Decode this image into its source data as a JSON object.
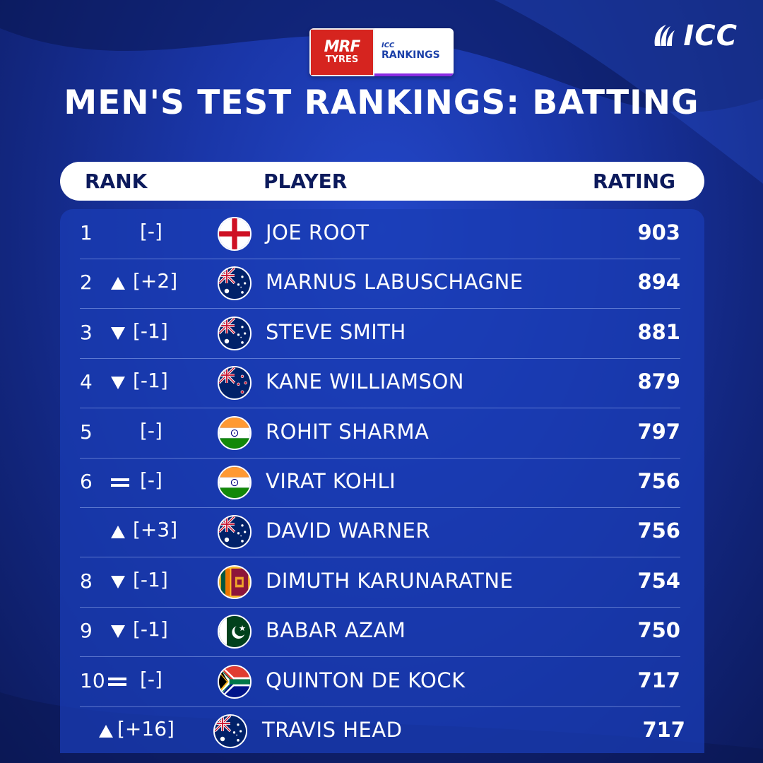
{
  "sponsor": {
    "mrf_line1": "MRF",
    "mrf_line2": "TYRES",
    "icc_small": "ICC",
    "icc_rankings": "RANKINGS"
  },
  "brand": {
    "logo_text": "ICC"
  },
  "title": "MEN'S TEST RANKINGS: BATTING",
  "headers": {
    "rank": "RANK",
    "player": "PLAYER",
    "rating": "RATING"
  },
  "colors": {
    "background": "#1a36a8",
    "panel": "#1a3cb4",
    "header_text": "#0c1a5c"
  },
  "rows": [
    {
      "rank": "1",
      "movement": "none",
      "change": "[-]",
      "flag": "england",
      "player": "JOE ROOT",
      "rating": "903"
    },
    {
      "rank": "2",
      "movement": "up",
      "change": "[+2]",
      "flag": "australia",
      "player": "MARNUS LABUSCHAGNE",
      "rating": "894"
    },
    {
      "rank": "3",
      "movement": "down",
      "change": "[-1]",
      "flag": "australia",
      "player": "STEVE SMITH",
      "rating": "881"
    },
    {
      "rank": "4",
      "movement": "down",
      "change": "[-1]",
      "flag": "new-zealand",
      "player": "KANE WILLIAMSON",
      "rating": "879"
    },
    {
      "rank": "5",
      "movement": "none",
      "change": "[-]",
      "flag": "india",
      "player": "ROHIT SHARMA",
      "rating": "797"
    },
    {
      "rank": "6",
      "movement": "equal",
      "change": "[-]",
      "flag": "india",
      "player": "VIRAT KOHLI",
      "rating": "756"
    },
    {
      "rank": "",
      "movement": "up",
      "change": "[+3]",
      "flag": "australia",
      "player": "DAVID WARNER",
      "rating": "756"
    },
    {
      "rank": "8",
      "movement": "down",
      "change": "[-1]",
      "flag": "sri-lanka",
      "player": "DIMUTH KARUNARATNE",
      "rating": "754"
    },
    {
      "rank": "9",
      "movement": "down",
      "change": "[-1]",
      "flag": "pakistan",
      "player": "BABAR AZAM",
      "rating": "750"
    },
    {
      "rank": "10",
      "movement": "equal",
      "change": "[-]",
      "flag": "south-africa",
      "player": "QUINTON DE KOCK",
      "rating": "717"
    },
    {
      "rank": "",
      "movement": "up",
      "change": "[+16]",
      "flag": "australia",
      "player": "TRAVIS HEAD",
      "rating": "717"
    }
  ]
}
